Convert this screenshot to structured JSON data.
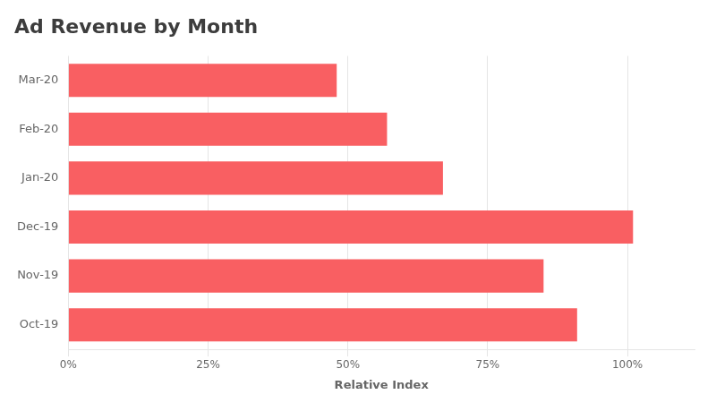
{
  "chart_data": {
    "type": "bar",
    "orientation": "horizontal",
    "title": "Ad Revenue by Month",
    "xlabel": "Relative Index",
    "categories": [
      "Oct-19",
      "Nov-19",
      "Dec-19",
      "Jan-20",
      "Feb-20",
      "Mar-20"
    ],
    "values": [
      91,
      85,
      101,
      67,
      57,
      48
    ],
    "color": "#f95f62",
    "xlim": [
      0,
      112
    ],
    "xticks": [
      {
        "value": 0,
        "label": "0%"
      },
      {
        "value": 25,
        "label": "25%"
      },
      {
        "value": 50,
        "label": "50%"
      },
      {
        "value": 75,
        "label": "75%"
      },
      {
        "value": 100,
        "label": "100%"
      }
    ],
    "grid": true
  }
}
